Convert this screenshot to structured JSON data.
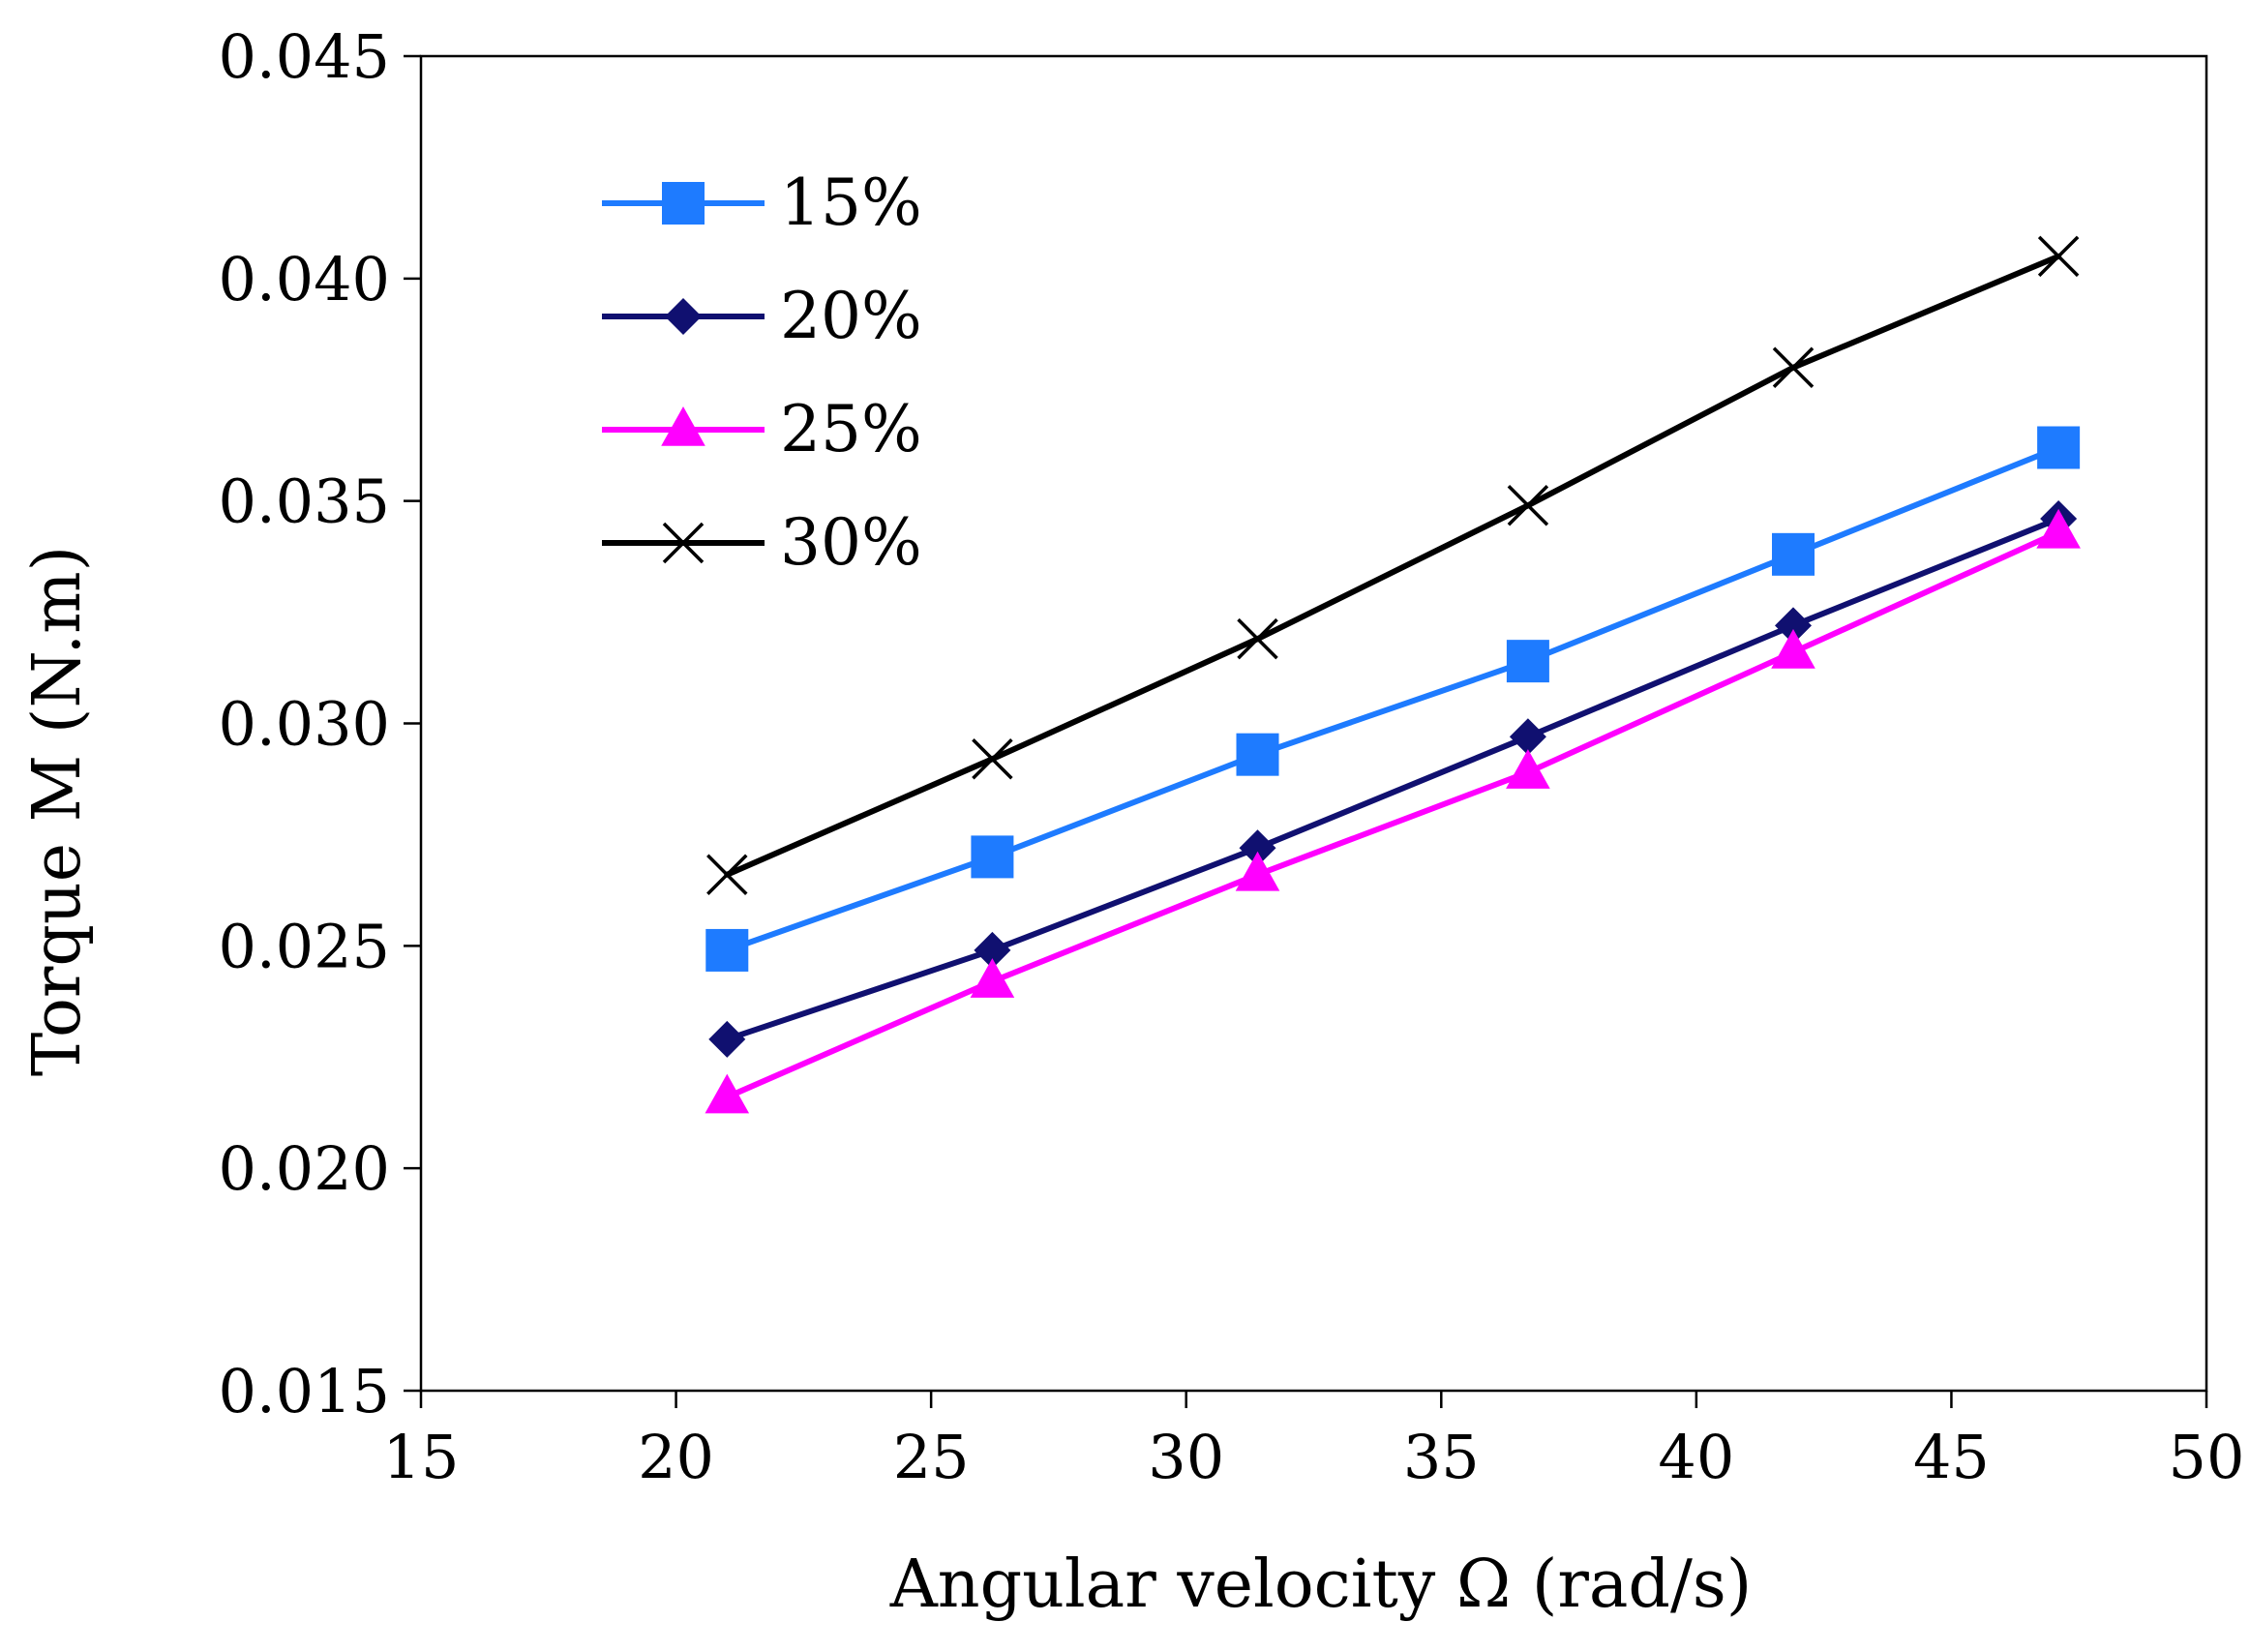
{
  "chart_data": {
    "type": "line",
    "title": "",
    "xlabel": "Angular velocity Ω (rad/s)",
    "ylabel": "Torque M (N.m)",
    "xlim": [
      15,
      50
    ],
    "ylim": [
      0.015,
      0.045
    ],
    "x_ticks": [
      15,
      20,
      25,
      30,
      35,
      40,
      45,
      50
    ],
    "x_tick_labels": [
      "15",
      "20",
      "25",
      "30",
      "35",
      "40",
      "45",
      "50"
    ],
    "y_ticks": [
      0.015,
      0.02,
      0.025,
      0.03,
      0.035,
      0.04,
      0.045
    ],
    "y_tick_labels": [
      "0.015",
      "0.020",
      "0.025",
      "0.030",
      "0.035",
      "0.040",
      "0.045"
    ],
    "grid": false,
    "legend_position": "top-left",
    "series": [
      {
        "name": "15%",
        "color": "#1e7bff",
        "marker": "square",
        "x": [
          21.0,
          26.2,
          31.4,
          36.7,
          41.9,
          47.1
        ],
        "values": [
          0.0249,
          0.027,
          0.0293,
          0.0314,
          0.0338,
          0.0362
        ]
      },
      {
        "name": "20%",
        "color": "#101070",
        "marker": "diamond",
        "x": [
          21.0,
          26.2,
          31.4,
          36.7,
          41.9,
          47.1
        ],
        "values": [
          0.0229,
          0.0249,
          0.0272,
          0.0297,
          0.0322,
          0.0346
        ]
      },
      {
        "name": "25%",
        "color": "#ff00ff",
        "marker": "triangle",
        "x": [
          21.0,
          26.2,
          31.4,
          36.7,
          41.9,
          47.1
        ],
        "values": [
          0.0216,
          0.0242,
          0.0266,
          0.0289,
          0.0316,
          0.0343
        ]
      },
      {
        "name": "30%",
        "color": "#000000",
        "marker": "x",
        "x": [
          21.0,
          26.2,
          31.4,
          36.7,
          41.9,
          47.1
        ],
        "values": [
          0.0266,
          0.0292,
          0.0319,
          0.0349,
          0.038,
          0.0405
        ]
      }
    ]
  }
}
